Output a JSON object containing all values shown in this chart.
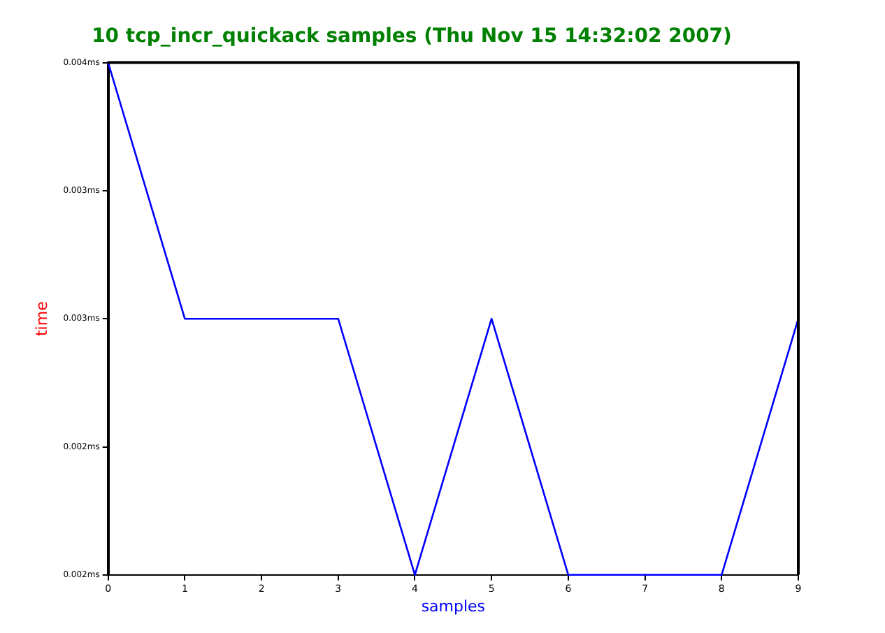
{
  "chart_data": {
    "type": "line",
    "title": "10 tcp_incr_quickack samples (Thu Nov 15 14:32:02 2007)",
    "xlabel": "samples",
    "ylabel": "time",
    "x": [
      0,
      1,
      2,
      3,
      4,
      5,
      6,
      7,
      8,
      9
    ],
    "series": [
      {
        "color": "#0000ff",
        "values": [
          0.004,
          0.003,
          0.003,
          0.003,
          0.002,
          0.003,
          0.002,
          0.002,
          0.002,
          0.003
        ]
      }
    ],
    "xlim": [
      0,
      9
    ],
    "xticks": [
      0,
      1,
      2,
      3,
      4,
      5,
      6,
      7,
      8,
      9
    ],
    "ylim": [
      0.002,
      0.004
    ],
    "yticks": [
      {
        "value": 0.002,
        "label": "0.002ms"
      },
      {
        "value": 0.0025,
        "label": "0.002ms"
      },
      {
        "value": 0.003,
        "label": "0.003ms"
      },
      {
        "value": 0.0035,
        "label": "0.003ms"
      },
      {
        "value": 0.004,
        "label": "0.004ms"
      }
    ],
    "grid": false,
    "legend": false,
    "marker": "none",
    "line_style": "solid"
  }
}
